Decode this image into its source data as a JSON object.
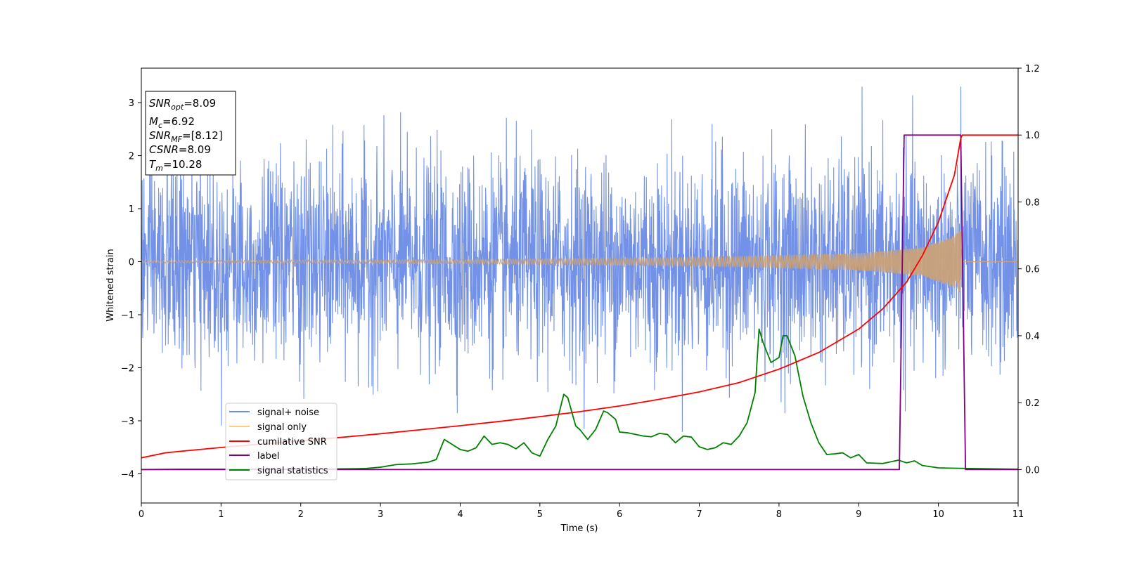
{
  "chart_data": {
    "type": "line",
    "xlabel": "Time (s)",
    "ylabel": "Whitened strain",
    "xlim": [
      0,
      11
    ],
    "ylim_left": [
      -4.55,
      3.65
    ],
    "ylim_right": [
      -0.1,
      1.2
    ],
    "xticks": [
      "0",
      "1",
      "2",
      "3",
      "4",
      "5",
      "6",
      "7",
      "8",
      "9",
      "10",
      "11"
    ],
    "yticks_left": [
      "−4",
      "−3",
      "−2",
      "−1",
      "0",
      "1",
      "2",
      "3"
    ],
    "yticks_right": [
      "0.0",
      "0.2",
      "0.4",
      "0.6",
      "0.8",
      "1.0",
      "1.2"
    ],
    "info_box": {
      "snr_opt": {
        "main": "SNR",
        "sub": "opt",
        "rest": "=8.09"
      },
      "mc": {
        "main": "M",
        "sub": "c",
        "rest": "=6.92"
      },
      "snr_mf": {
        "main": "SNR",
        "sub": "MF",
        "rest": "=[8.12]"
      },
      "csnr": {
        "main": "CSNR",
        "sub": "",
        "rest": "=8.09"
      },
      "tm": {
        "main": "T",
        "sub": "m",
        "rest": "=10.28"
      }
    },
    "legend": {
      "position": "lower-left",
      "entries": [
        {
          "label": "signal+ noise",
          "color": "#6c8ce6"
        },
        {
          "label": "signal only",
          "color": "#ffcc80"
        },
        {
          "label": "cumilative SNR",
          "color": "#ff0000"
        },
        {
          "label": "label",
          "color": "#800080"
        },
        {
          "label": "signal statistics",
          "color": "#008000"
        }
      ]
    },
    "series": [
      {
        "name": "signal+ noise",
        "axis": "left",
        "color": "#6c8ce6",
        "kind": "noise",
        "noise_sigma": 0.95,
        "visible_range": [
          -3.6,
          3.3
        ]
      },
      {
        "name": "signal only",
        "axis": "left",
        "color": "#c9a27a",
        "kind": "chirp",
        "t_merger": 10.28,
        "envelope": [
          [
            0,
            0.02
          ],
          [
            4,
            0.04
          ],
          [
            7,
            0.08
          ],
          [
            9,
            0.16
          ],
          [
            9.8,
            0.27
          ],
          [
            10.2,
            0.5
          ],
          [
            10.28,
            0.6
          ],
          [
            10.3,
            0.0
          ],
          [
            11,
            0.0
          ]
        ]
      },
      {
        "name": "cumilative SNR",
        "axis": "right",
        "color": "#ff0000",
        "x": [
          0,
          0.3,
          0.6,
          1,
          1.5,
          2,
          2.5,
          3,
          3.5,
          4,
          4.5,
          5,
          5.5,
          6,
          6.5,
          7,
          7.5,
          8,
          8.5,
          9,
          9.3,
          9.6,
          9.8,
          10.0,
          10.1,
          10.2,
          10.28,
          10.3,
          11
        ],
        "y": [
          0.035,
          0.05,
          0.057,
          0.066,
          0.076,
          0.086,
          0.096,
          0.107,
          0.119,
          0.131,
          0.144,
          0.158,
          0.173,
          0.19,
          0.21,
          0.232,
          0.26,
          0.3,
          0.35,
          0.42,
          0.48,
          0.56,
          0.64,
          0.74,
          0.81,
          0.88,
          0.99,
          1.0,
          1.0
        ]
      },
      {
        "name": "label",
        "axis": "right",
        "color": "#800080",
        "x": [
          0,
          9.51,
          9.57,
          10.28,
          10.34,
          11
        ],
        "y": [
          0,
          0,
          1,
          1,
          0,
          0
        ]
      },
      {
        "name": "signal statistics",
        "axis": "right",
        "color": "#008000",
        "x": [
          0,
          0.5,
          1,
          1.5,
          2,
          2.5,
          2.8,
          3.0,
          3.2,
          3.4,
          3.6,
          3.7,
          3.8,
          3.9,
          4.0,
          4.1,
          4.2,
          4.3,
          4.4,
          4.5,
          4.6,
          4.7,
          4.8,
          4.9,
          5.0,
          5.1,
          5.2,
          5.3,
          5.35,
          5.45,
          5.5,
          5.6,
          5.7,
          5.8,
          5.85,
          5.95,
          6.0,
          6.1,
          6.2,
          6.3,
          6.4,
          6.5,
          6.6,
          6.7,
          6.8,
          6.9,
          7.0,
          7.1,
          7.2,
          7.3,
          7.4,
          7.5,
          7.6,
          7.7,
          7.75,
          7.8,
          7.9,
          8.0,
          8.05,
          8.1,
          8.2,
          8.3,
          8.4,
          8.5,
          8.6,
          8.7,
          8.8,
          8.9,
          9.0,
          9.1,
          9.3,
          9.5,
          9.6,
          9.7,
          9.8,
          10.0,
          10.2,
          10.4,
          10.7,
          11
        ],
        "y": [
          0,
          0.001,
          0.001,
          0.001,
          0.001,
          0.002,
          0.003,
          0.007,
          0.015,
          0.017,
          0.022,
          0.03,
          0.09,
          0.075,
          0.06,
          0.055,
          0.065,
          0.1,
          0.075,
          0.08,
          0.075,
          0.062,
          0.08,
          0.05,
          0.04,
          0.09,
          0.13,
          0.225,
          0.215,
          0.13,
          0.12,
          0.09,
          0.12,
          0.175,
          0.17,
          0.15,
          0.112,
          0.11,
          0.105,
          0.1,
          0.098,
          0.108,
          0.105,
          0.08,
          0.1,
          0.097,
          0.068,
          0.06,
          0.065,
          0.08,
          0.075,
          0.1,
          0.14,
          0.23,
          0.42,
          0.38,
          0.32,
          0.335,
          0.4,
          0.4,
          0.34,
          0.22,
          0.14,
          0.08,
          0.045,
          0.047,
          0.05,
          0.035,
          0.045,
          0.02,
          0.018,
          0.028,
          0.02,
          0.026,
          0.012,
          0.005,
          0.004,
          0.003,
          0.002,
          0.001
        ]
      }
    ]
  }
}
